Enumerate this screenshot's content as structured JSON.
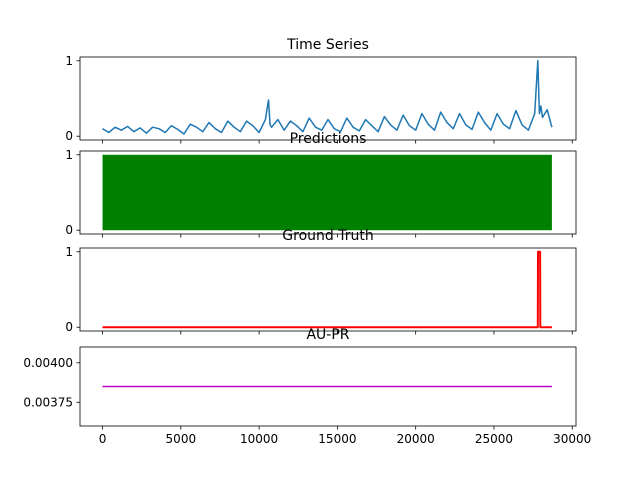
{
  "chart_data": [
    {
      "type": "line",
      "title": "Time Series",
      "xlim": [
        -1440,
        30240
      ],
      "ylim": [
        -0.05,
        1.05
      ],
      "yticks": [
        0,
        1
      ],
      "ytick_labels": [
        "0",
        "1"
      ],
      "color": "#1f77b4",
      "series": [
        {
          "x": [
            0,
            400,
            800,
            1200,
            1600,
            2000,
            2400,
            2800,
            3200,
            3600,
            4000,
            4400,
            4800,
            5200,
            5600,
            6000,
            6400,
            6800,
            7200,
            7600,
            8000,
            8400,
            8800,
            9200,
            9600,
            10000,
            10400,
            10600,
            10700,
            10800,
            11200,
            11600,
            12000,
            12400,
            12800,
            13200,
            13600,
            14000,
            14400,
            14800,
            15200,
            15600,
            16000,
            16400,
            16800,
            17200,
            17600,
            18000,
            18400,
            18800,
            19200,
            19600,
            20000,
            20400,
            20800,
            21200,
            21600,
            22000,
            22400,
            22800,
            23200,
            23600,
            24000,
            24400,
            24800,
            25200,
            25600,
            26000,
            26400,
            26800,
            27200,
            27600,
            27800,
            27900,
            28000,
            28100,
            28400,
            28700
          ],
          "values": [
            0.1,
            0.05,
            0.12,
            0.08,
            0.13,
            0.06,
            0.11,
            0.04,
            0.12,
            0.1,
            0.05,
            0.14,
            0.09,
            0.03,
            0.16,
            0.12,
            0.06,
            0.18,
            0.1,
            0.05,
            0.2,
            0.12,
            0.06,
            0.2,
            0.14,
            0.05,
            0.22,
            0.48,
            0.15,
            0.12,
            0.22,
            0.08,
            0.2,
            0.14,
            0.06,
            0.24,
            0.12,
            0.08,
            0.22,
            0.1,
            0.06,
            0.24,
            0.12,
            0.07,
            0.22,
            0.14,
            0.06,
            0.26,
            0.15,
            0.08,
            0.28,
            0.14,
            0.08,
            0.3,
            0.16,
            0.08,
            0.32,
            0.18,
            0.1,
            0.3,
            0.15,
            0.09,
            0.32,
            0.18,
            0.08,
            0.3,
            0.16,
            0.1,
            0.34,
            0.15,
            0.08,
            0.3,
            1.0,
            0.3,
            0.4,
            0.25,
            0.35,
            0.12
          ]
        }
      ]
    },
    {
      "type": "bar",
      "title": "Predictions",
      "xlim": [
        -1440,
        30240
      ],
      "ylim": [
        -0.05,
        1.05
      ],
      "yticks": [
        0,
        1
      ],
      "ytick_labels": [
        "0",
        "1"
      ],
      "color": "#008000",
      "series": [
        {
          "x": [
            0,
            28700
          ],
          "values": [
            1,
            1
          ]
        }
      ]
    },
    {
      "type": "line",
      "title": "Ground Truth",
      "xlim": [
        -1440,
        30240
      ],
      "ylim": [
        -0.05,
        1.05
      ],
      "yticks": [
        0,
        1
      ],
      "ytick_labels": [
        "0",
        "1"
      ],
      "color": "#ff0000",
      "series": [
        {
          "x": [
            0,
            27800,
            27810,
            27950,
            27960,
            28700
          ],
          "values": [
            0,
            0,
            1,
            1,
            0,
            0
          ]
        }
      ]
    },
    {
      "type": "line",
      "title": "AU-PR",
      "xlim": [
        -1440,
        30240
      ],
      "ylim": [
        0.0036,
        0.0041
      ],
      "yticks": [
        0.00375,
        0.004
      ],
      "ytick_labels": [
        "0.00375",
        "0.00400"
      ],
      "xticks": [
        0,
        5000,
        10000,
        15000,
        20000,
        25000,
        30000
      ],
      "xtick_labels": [
        "0",
        "5000",
        "10000",
        "15000",
        "20000",
        "25000",
        "30000"
      ],
      "color": "#bf00bf",
      "series": [
        {
          "x": [
            0,
            28700
          ],
          "values": [
            0.00385,
            0.00385
          ]
        }
      ]
    }
  ]
}
